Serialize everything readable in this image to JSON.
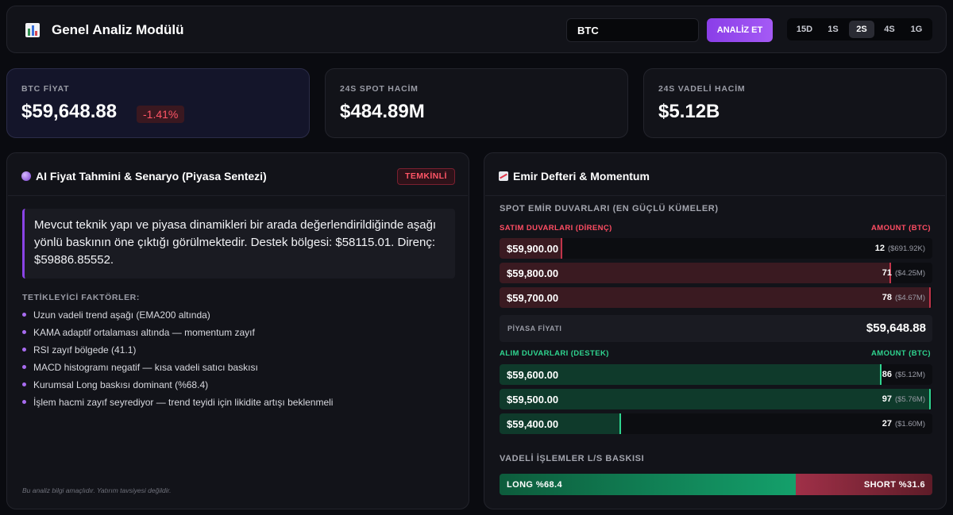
{
  "header": {
    "title": "Genel Analiz Modülü",
    "logo_icon": "bar-chart-icon",
    "search_value": "BTC",
    "analyze_label": "ANALİZ ET",
    "timeframes": [
      "15D",
      "1S",
      "2S",
      "4S",
      "1G"
    ],
    "active_timeframe": "2S",
    "accent_color": "#9b4cf0"
  },
  "stats": {
    "price_label": "BTC FİYAT",
    "price_value": "$59,648.88",
    "price_change": "-1.41%",
    "spot_label": "24S SPOT HACİM",
    "spot_value": "$484.89M",
    "futures_label": "24S VADELİ HACİM",
    "futures_value": "$5.12B"
  },
  "ai": {
    "title": "AI Fiyat Tahmini & Senaryo (Piyasa Sentezi)",
    "icon": "crystal-ball-icon",
    "badge": "TEMKİNLİ",
    "summary": "Mevcut teknik yapı ve piyasa dinamikleri bir arada değerlendirildiğinde aşağı yönlü baskının öne çıktığı görülmektedir. Destek bölgesi: $58115.01. Direnç: $59886.85552.",
    "factors_title": "TETİKLEYİCİ FAKTÖRLER:",
    "factors": [
      "Uzun vadeli trend aşağı (EMA200 altında)",
      "KAMA adaptif ortalaması altında — momentum zayıf",
      "RSI zayıf bölgede (41.1)",
      "MACD histogramı negatif — kısa vadeli satıcı baskısı",
      "Kurumsal Long baskısı dominant (%68.4)",
      "İşlem hacmi zayıf seyrediyor — trend teyidi için likidite artışı beklenmeli"
    ],
    "disclaimer": "Bu analiz bilgi amaçlıdır. Yatırım tavsiyesi değildir."
  },
  "orderbook": {
    "title": "Emir Defteri & Momentum",
    "icon": "chart-trend-icon",
    "walls_title": "SPOT EMİR DUVARLARI (EN GÜÇLÜ KÜMELER)",
    "ask_header": "SATIM DUVARLARI (DİRENÇ)",
    "bid_header": "ALIM DUVARLARI (DESTEK)",
    "amount_header": "AMOUNT (BTC)",
    "asks": [
      {
        "price": "$59,900.00",
        "amount": "12",
        "usd": "($691.92K)",
        "fill": 0.146
      },
      {
        "price": "$59,800.00",
        "amount": "71",
        "usd": "($4.25M)",
        "fill": 0.908
      },
      {
        "price": "$59,700.00",
        "amount": "78",
        "usd": "($4.67M)",
        "fill": 1.0
      }
    ],
    "market_label": "PİYASA FİYATI",
    "market_value": "$59,648.88",
    "bids": [
      {
        "price": "$59,600.00",
        "amount": "86",
        "usd": "($5.12M)",
        "fill": 0.887
      },
      {
        "price": "$59,500.00",
        "amount": "97",
        "usd": "($5.76M)",
        "fill": 1.0
      },
      {
        "price": "$59,400.00",
        "amount": "27",
        "usd": "($1.60M)",
        "fill": 0.281
      }
    ],
    "ls_title": "VADELİ İŞLEMLER L/S BASKISI",
    "long_label": "LONG %68.4",
    "short_label": "SHORT %31.6",
    "long_fraction": 0.684,
    "ask_color": "#c2344a",
    "bid_color": "#2fd48f"
  }
}
